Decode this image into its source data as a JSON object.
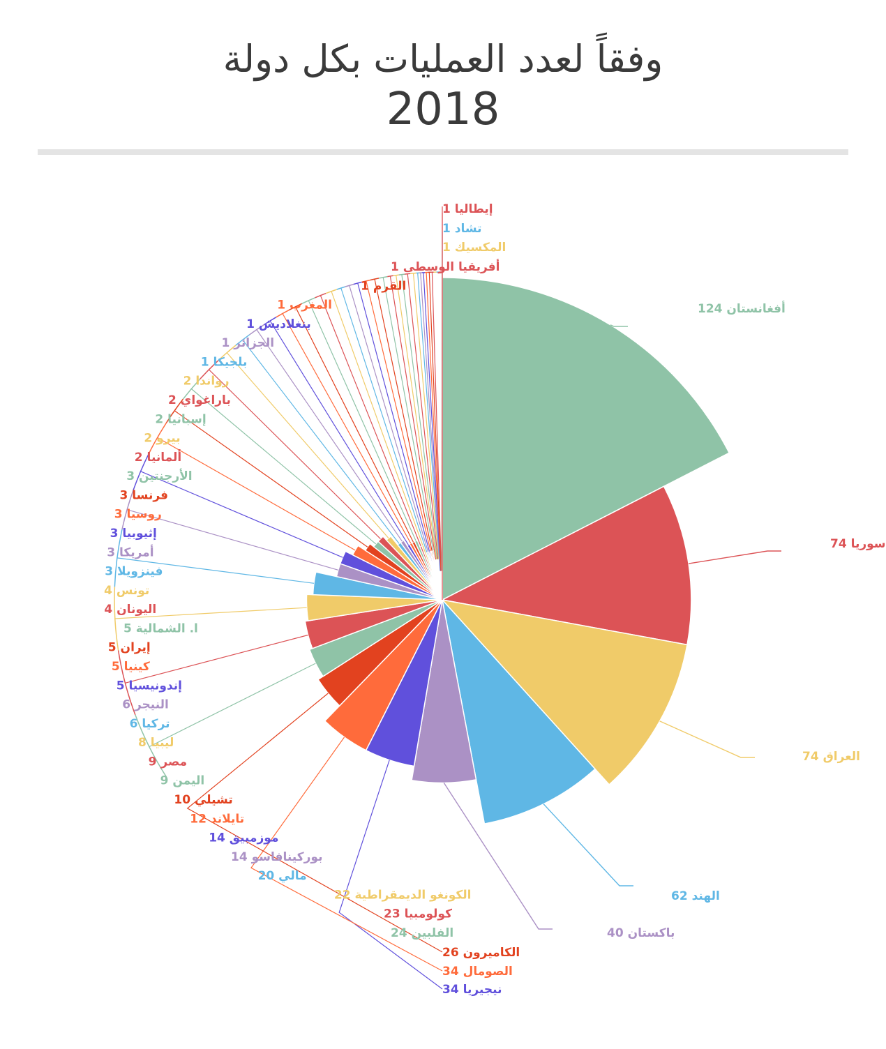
{
  "title": "وفقاً لعدد العمليات بكل دولة",
  "subtitle": "2018",
  "chart_data": {
    "type": "pie",
    "variant": "nightingale-rose",
    "start_angle": "12 o'clock, clockwise",
    "series": [
      {
        "label": "أفغانستان",
        "value": 124,
        "color": "#8fc3a7"
      },
      {
        "label": "سوريا",
        "value": 74,
        "color": "#dc5356"
      },
      {
        "label": "العراق",
        "value": 74,
        "color": "#f0cb69"
      },
      {
        "label": "الهند",
        "value": 62,
        "color": "#5fb7e5"
      },
      {
        "label": "باكستان",
        "value": 40,
        "color": "#ab91c5"
      },
      {
        "label": "نيجيريا",
        "value": 34,
        "color": "#6050dc"
      },
      {
        "label": "الصومال",
        "value": 34,
        "color": "#ff6b3b"
      },
      {
        "label": "الكاميرون",
        "value": 26,
        "color": "#e2421f"
      },
      {
        "label": "الفلبين",
        "value": 24,
        "color": "#8fc3a7"
      },
      {
        "label": "كولومبيا",
        "value": 23,
        "color": "#dc5356"
      },
      {
        "label": "الكونغو الديمقراطية",
        "value": 22,
        "color": "#f0cb69"
      },
      {
        "label": "مالي",
        "value": 20,
        "color": "#5fb7e5"
      },
      {
        "label": "بوركينافاسو",
        "value": 14,
        "color": "#ab91c5"
      },
      {
        "label": "موزمبيق",
        "value": 14,
        "color": "#6050dc"
      },
      {
        "label": "تايلاند",
        "value": 12,
        "color": "#ff6b3b"
      },
      {
        "label": "تشيلي",
        "value": 10,
        "color": "#e2421f"
      },
      {
        "label": "اليمن",
        "value": 9,
        "color": "#8fc3a7"
      },
      {
        "label": "مصر",
        "value": 9,
        "color": "#dc5356"
      },
      {
        "label": "ليبيا",
        "value": 8,
        "color": "#f0cb69"
      },
      {
        "label": "تركيا",
        "value": 6,
        "color": "#5fb7e5"
      },
      {
        "label": "النيجر",
        "value": 6,
        "color": "#ab91c5"
      },
      {
        "label": "إندونيسيا",
        "value": 5,
        "color": "#6050dc"
      },
      {
        "label": "كينيا",
        "value": 5,
        "color": "#ff6b3b"
      },
      {
        "label": "إيران",
        "value": 5,
        "color": "#e2421f"
      },
      {
        "label": "ا. الشمالية",
        "value": 5,
        "color": "#8fc3a7"
      },
      {
        "label": "اليونان",
        "value": 4,
        "color": "#dc5356"
      },
      {
        "label": "تونس",
        "value": 4,
        "color": "#f0cb69"
      },
      {
        "label": "فينزويلا",
        "value": 3,
        "color": "#5fb7e5"
      },
      {
        "label": "أمريكا",
        "value": 3,
        "color": "#ab91c5"
      },
      {
        "label": "إثيوبيا",
        "value": 3,
        "color": "#6050dc"
      },
      {
        "label": "روسيا",
        "value": 3,
        "color": "#ff6b3b"
      },
      {
        "label": "فرنسا",
        "value": 3,
        "color": "#e2421f"
      },
      {
        "label": "الأرجنتين",
        "value": 3,
        "color": "#8fc3a7"
      },
      {
        "label": "ألمانيا",
        "value": 2,
        "color": "#dc5356"
      },
      {
        "label": "بيرو",
        "value": 2,
        "color": "#f0cb69"
      },
      {
        "label": "إسبانيا",
        "value": 2,
        "color": "#8fc3a7"
      },
      {
        "label": "باراغواي",
        "value": 2,
        "color": "#dc5356"
      },
      {
        "label": "رواندا",
        "value": 2,
        "color": "#f0cb69"
      },
      {
        "label": "بلجيكا",
        "value": 1,
        "color": "#5fb7e5"
      },
      {
        "label": "الجزائر",
        "value": 1,
        "color": "#ab91c5"
      },
      {
        "label": "بنغلاديش",
        "value": 1,
        "color": "#6050dc"
      },
      {
        "label": "المغرب",
        "value": 1,
        "color": "#ff6b3b"
      },
      {
        "label": "القرم",
        "value": 1,
        "color": "#e2421f"
      },
      {
        "label": "أفريقيا الوسطى",
        "value": 1,
        "color": "#dc5356"
      },
      {
        "label": "المكسيك",
        "value": 1,
        "color": "#f0cb69"
      },
      {
        "label": "تشاد",
        "value": 1,
        "color": "#5fb7e5"
      },
      {
        "label": "إيطاليا",
        "value": 1,
        "color": "#dc5356"
      }
    ]
  }
}
